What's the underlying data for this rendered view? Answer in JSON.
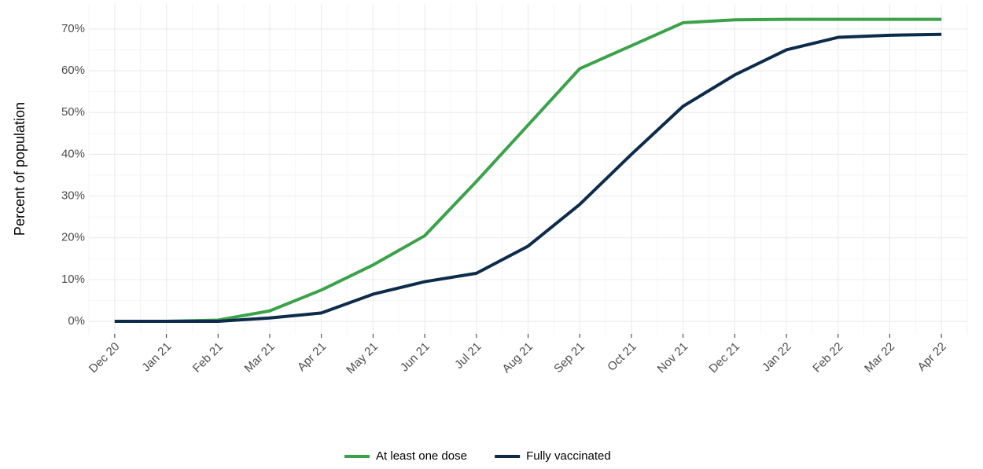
{
  "chart_data": {
    "type": "line",
    "ylabel": "Percent of population",
    "categories": [
      "Dec 20",
      "Jan 21",
      "Feb 21",
      "Mar 21",
      "Apr 21",
      "May 21",
      "Jun 21",
      "Jul 21",
      "Aug 21",
      "Sep 21",
      "Oct 21",
      "Nov 21",
      "Dec 21",
      "Jan 22",
      "Feb 22",
      "Mar 22",
      "Apr 22"
    ],
    "series": [
      {
        "name": "At least one dose",
        "color": "#3ba24a",
        "values": [
          0,
          0,
          0.3,
          2.5,
          7.5,
          13.5,
          20.5,
          33.5,
          47,
          60.5,
          66,
          71.5,
          72.2,
          72.3,
          72.3,
          72.3,
          72.3
        ]
      },
      {
        "name": "Fully vaccinated",
        "color": "#0d2b4a",
        "values": [
          0,
          0,
          0,
          0.8,
          2,
          6.5,
          9.5,
          11.5,
          18,
          28,
          40,
          51.5,
          59,
          65,
          68,
          68.5,
          68.7
        ]
      }
    ],
    "ylim": [
      -3,
      76
    ],
    "yticks": [
      {
        "value": 0,
        "label": "0%"
      },
      {
        "value": 10,
        "label": "10%"
      },
      {
        "value": 20,
        "label": "20%"
      },
      {
        "value": 30,
        "label": "30%"
      },
      {
        "value": 40,
        "label": "40%"
      },
      {
        "value": 50,
        "label": "50%"
      },
      {
        "value": 60,
        "label": "60%"
      },
      {
        "value": 70,
        "label": "70%"
      }
    ],
    "grid": true,
    "legend": "bottom"
  }
}
